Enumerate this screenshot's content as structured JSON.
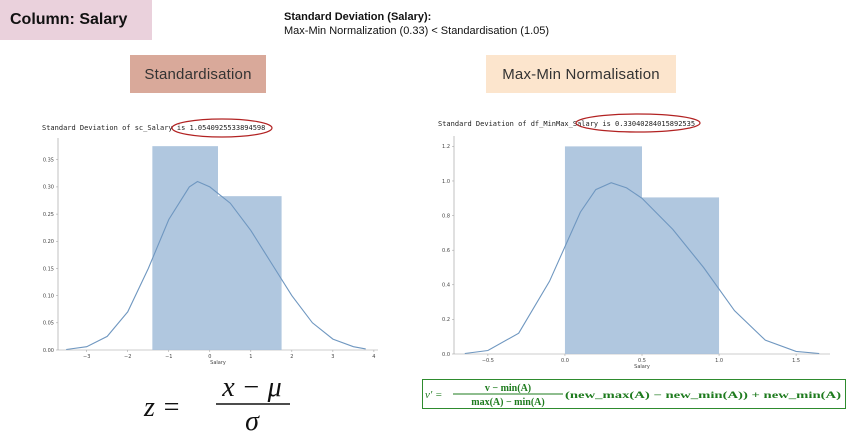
{
  "column_badge": "Column: Salary",
  "summary": {
    "title": "Standard Deviation (Salary):",
    "text": "Max-Min Normalization (0.33) < Standardisation (1.05)"
  },
  "labels": {
    "standardisation": "Standardisation",
    "maxmin": "Max-Min Normalisation"
  },
  "colors": {
    "bar": "#a7c1dc",
    "kde": "#6f97c0",
    "highlight": "#b22222",
    "badge": "#ead1dc",
    "std_label": "#d9a99a",
    "mm_label": "#fce5cd",
    "formula_mm": "#1e7b1e"
  },
  "formulas": {
    "z_lhs": "z =",
    "z_num": "x − μ",
    "z_den": "σ",
    "mm_lhs": "v′ =",
    "mm_num": "v − min(A)",
    "mm_den": "max(A) − min(A)",
    "mm_tail": "(new_max(A) − new_min(A)) + new_min(A)"
  },
  "chart_data": [
    {
      "type": "bar",
      "output_text": "Standard Deviation of sc_Salary is 1.0540925533894598",
      "xlabel": "Salary",
      "xlim": [
        -3.7,
        4.1
      ],
      "ylim": [
        0,
        0.39
      ],
      "xticks": [
        -3,
        -2,
        -1,
        0,
        1,
        2,
        3,
        4
      ],
      "yticks": [
        0.0,
        0.05,
        0.1,
        0.15,
        0.2,
        0.25,
        0.3,
        0.35
      ],
      "ytick_labels": [
        "0.00",
        "0.05",
        "0.10",
        "0.15",
        "0.20",
        "0.25",
        "0.30",
        "0.35"
      ],
      "bins": [
        {
          "x0": -1.4,
          "x1": 0.2,
          "height": 0.375
        },
        {
          "x0": 0.2,
          "x1": 1.75,
          "height": 0.283
        }
      ],
      "kde": {
        "x": [
          -3.5,
          -3.0,
          -2.5,
          -2.0,
          -1.5,
          -1.0,
          -0.5,
          -0.3,
          0.0,
          0.5,
          1.0,
          1.5,
          2.0,
          2.5,
          3.0,
          3.5,
          3.8
        ],
        "y": [
          0.001,
          0.006,
          0.025,
          0.07,
          0.15,
          0.24,
          0.3,
          0.31,
          0.3,
          0.27,
          0.22,
          0.16,
          0.1,
          0.05,
          0.02,
          0.006,
          0.002
        ]
      }
    },
    {
      "type": "bar",
      "output_text": "Standard Deviation of df_MinMax_Salary is 0.33040284015892535",
      "xlabel": "Salary",
      "xlim": [
        -0.72,
        1.72
      ],
      "ylim": [
        0,
        1.26
      ],
      "xticks": [
        -0.5,
        0.0,
        0.5,
        1.0,
        1.5
      ],
      "xtick_labels": [
        "−0.5",
        "0.0",
        "0.5",
        "1.0",
        "1.5"
      ],
      "yticks": [
        0.0,
        0.2,
        0.4,
        0.6,
        0.8,
        1.0,
        1.2
      ],
      "ytick_labels": [
        "0.0",
        "0.2",
        "0.4",
        "0.6",
        "0.8",
        "1.0",
        "1.2"
      ],
      "bins": [
        {
          "x0": 0.0,
          "x1": 0.5,
          "height": 1.2
        },
        {
          "x0": 0.5,
          "x1": 1.0,
          "height": 0.905
        }
      ],
      "kde": {
        "x": [
          -0.65,
          -0.5,
          -0.3,
          -0.1,
          0.1,
          0.2,
          0.3,
          0.4,
          0.5,
          0.7,
          0.9,
          1.1,
          1.3,
          1.5,
          1.65
        ],
        "y": [
          0.003,
          0.02,
          0.12,
          0.42,
          0.82,
          0.95,
          0.99,
          0.96,
          0.9,
          0.72,
          0.5,
          0.25,
          0.08,
          0.015,
          0.003
        ]
      }
    }
  ]
}
